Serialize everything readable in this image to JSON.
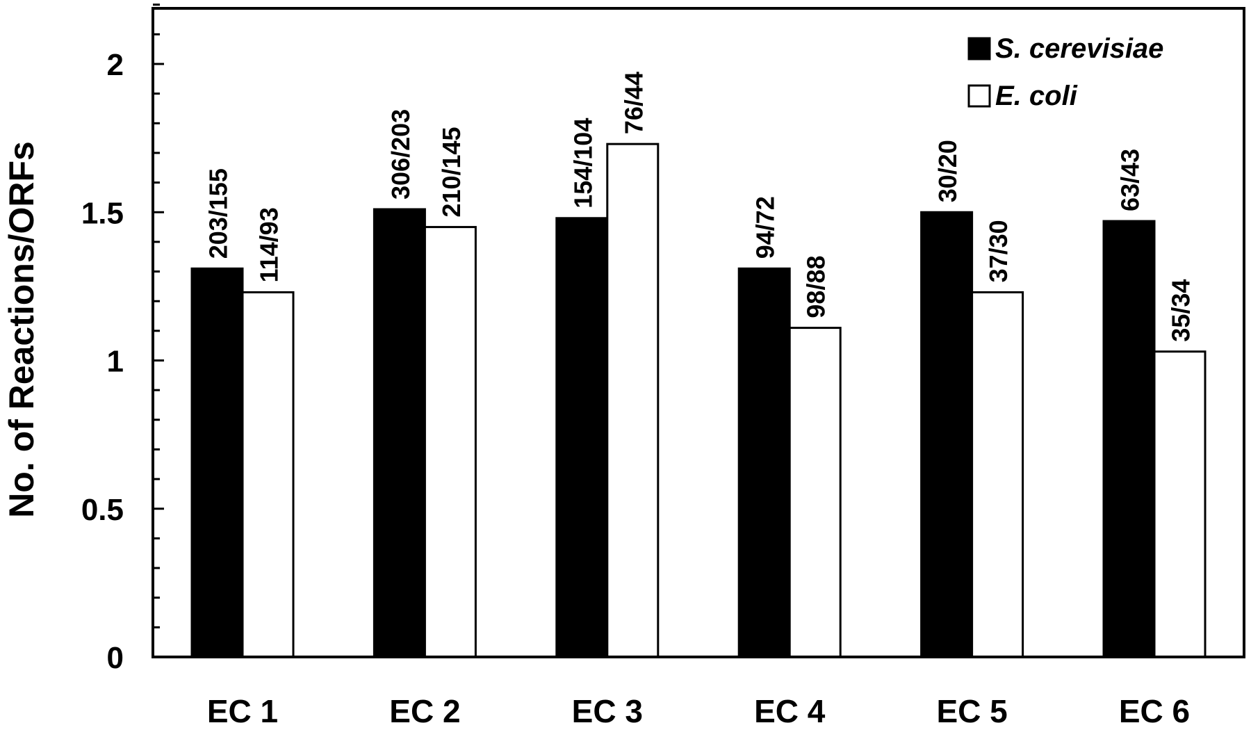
{
  "chart_data": {
    "type": "bar",
    "categories": [
      "EC 1",
      "EC 2",
      "EC 3",
      "EC 4",
      "EC 5",
      "EC 6"
    ],
    "series": [
      {
        "name": "S. cerevisiae",
        "values": [
          1.31,
          1.51,
          1.48,
          1.31,
          1.5,
          1.47
        ],
        "labels": [
          "203/155",
          "306/203",
          "154/104",
          "94/72",
          "30/20",
          "63/43"
        ],
        "fill": "#000000"
      },
      {
        "name": "E. coli",
        "values": [
          1.23,
          1.45,
          1.73,
          1.11,
          1.23,
          1.03
        ],
        "labels": [
          "114/93",
          "210/145",
          "76/44",
          "98/88",
          "37/30",
          "35/34"
        ],
        "fill": "#ffffff"
      }
    ],
    "ylabel": "No. of Reactions/ORFs",
    "xlabel": "",
    "ylim": [
      0,
      2.2
    ],
    "yticks": [
      "0",
      "0.5",
      "1",
      "1.5",
      "2"
    ],
    "minor_tick_step": 0.1,
    "grid": false,
    "legend": "top-right"
  }
}
